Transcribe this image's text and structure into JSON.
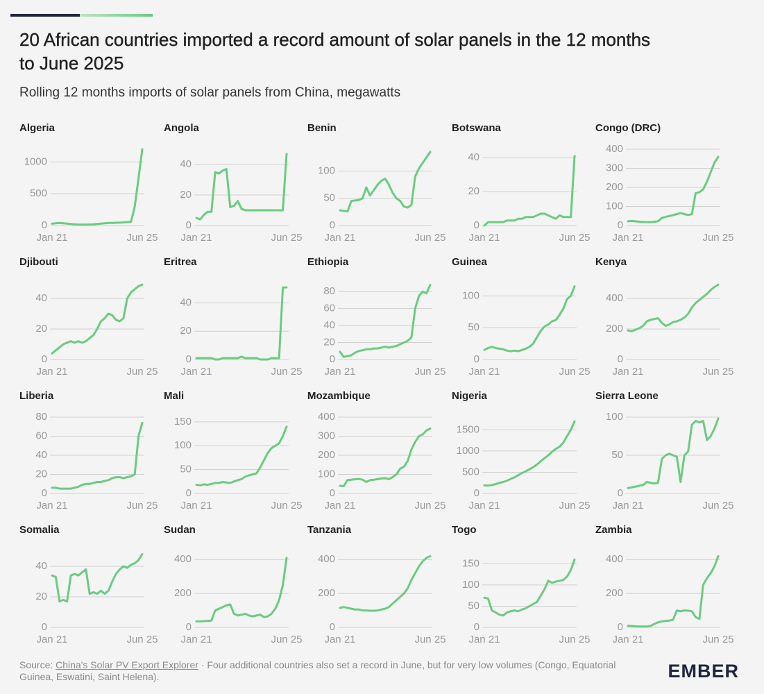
{
  "title_lines": [
    "20 African countries imported a record amount of solar panels in the 12 months",
    "to June 2025"
  ],
  "subtitle": "Rolling 12 months imports of solar panels from China, megawatts",
  "source": {
    "label": "Source:",
    "link": "China's Solar PV Export Explorer",
    "note": "· Four additional countries also set a record in June, but for very low volumes (Congo, Equatorial Guinea, Eswatini, Saint Helena)."
  },
  "logo": "EMBER",
  "chart_data": [
    {
      "type": "line",
      "title": "Algeria",
      "color": "#6acc7f",
      "ylim": [
        0,
        1200
      ],
      "yticks": [
        0,
        500,
        1000
      ],
      "categories": [
        "Jan 21",
        null,
        null,
        null,
        null,
        null,
        null,
        null,
        null,
        null,
        null,
        null,
        null,
        null,
        null,
        null,
        null,
        null,
        null,
        null,
        null,
        null,
        null,
        null,
        "Jun 25"
      ],
      "values": [
        30,
        35,
        40,
        35,
        30,
        25,
        20,
        15,
        15,
        15,
        18,
        20,
        25,
        30,
        35,
        40,
        40,
        45,
        45,
        50,
        55,
        60,
        300,
        740,
        1200
      ]
    },
    {
      "type": "line",
      "title": "Angola",
      "color": "#6acc7f",
      "ylim": [
        0,
        50
      ],
      "yticks": [
        0,
        20,
        40
      ],
      "categories": [
        "Jan 21",
        null,
        null,
        null,
        null,
        null,
        null,
        null,
        null,
        null,
        null,
        null,
        null,
        null,
        null,
        null,
        null,
        null,
        null,
        null,
        null,
        null,
        null,
        null,
        "Jun 25"
      ],
      "values": [
        5,
        4,
        7,
        9,
        9,
        35,
        34,
        36,
        37,
        12,
        13,
        16,
        11,
        10,
        10,
        10,
        10,
        10,
        10,
        10,
        10,
        10,
        10,
        10,
        47
      ]
    },
    {
      "type": "line",
      "title": "Benin",
      "color": "#6acc7f",
      "ylim": [
        0,
        140
      ],
      "yticks": [
        0,
        50,
        100
      ],
      "categories": [
        "Jan 21",
        null,
        null,
        null,
        null,
        null,
        null,
        null,
        null,
        null,
        null,
        null,
        null,
        null,
        null,
        null,
        null,
        null,
        null,
        null,
        null,
        null,
        null,
        null,
        "Jun 25"
      ],
      "values": [
        28,
        27,
        26,
        45,
        46,
        47,
        50,
        70,
        55,
        65,
        75,
        82,
        86,
        75,
        60,
        50,
        45,
        35,
        33,
        38,
        90,
        105,
        115,
        125,
        135
      ]
    },
    {
      "type": "line",
      "title": "Botswana",
      "color": "#6acc7f",
      "ylim": [
        0,
        45
      ],
      "yticks": [
        0,
        20,
        40
      ],
      "categories": [
        "Jan 21",
        null,
        null,
        null,
        null,
        null,
        null,
        null,
        null,
        null,
        null,
        null,
        null,
        null,
        null,
        null,
        null,
        null,
        null,
        null,
        null,
        null,
        null,
        null,
        "Jun 25"
      ],
      "values": [
        0,
        2,
        2,
        2,
        2,
        2,
        3,
        3,
        3,
        4,
        4,
        5,
        5,
        5,
        6,
        7,
        7,
        6,
        5,
        4,
        6,
        5,
        5,
        5,
        41
      ]
    },
    {
      "type": "line",
      "title": "Congo (DRC)",
      "color": "#6acc7f",
      "ylim": [
        0,
        400
      ],
      "yticks": [
        0,
        100,
        200,
        300,
        400
      ],
      "categories": [
        "Jan 21",
        null,
        null,
        null,
        null,
        null,
        null,
        null,
        null,
        null,
        null,
        null,
        null,
        null,
        null,
        null,
        null,
        null,
        null,
        null,
        null,
        null,
        null,
        null,
        "Jun 25"
      ],
      "values": [
        22,
        24,
        22,
        20,
        19,
        18,
        18,
        20,
        22,
        40,
        45,
        50,
        55,
        60,
        65,
        60,
        55,
        60,
        170,
        175,
        190,
        230,
        280,
        330,
        360
      ]
    },
    {
      "type": "line",
      "title": "Djibouti",
      "color": "#6acc7f",
      "ylim": [
        0,
        50
      ],
      "yticks": [
        0,
        20,
        40
      ],
      "categories": [
        "Jan 21",
        null,
        null,
        null,
        null,
        null,
        null,
        null,
        null,
        null,
        null,
        null,
        null,
        null,
        null,
        null,
        null,
        null,
        null,
        null,
        null,
        null,
        null,
        null,
        "Jun 25"
      ],
      "values": [
        4,
        6,
        8,
        10,
        11,
        12,
        11,
        12,
        11,
        12,
        14,
        16,
        20,
        25,
        27,
        30,
        29,
        26,
        25,
        27,
        40,
        44,
        46,
        48,
        49
      ]
    },
    {
      "type": "line",
      "title": "Eritrea",
      "color": "#6acc7f",
      "ylim": [
        0,
        54
      ],
      "yticks": [
        0,
        20,
        40
      ],
      "categories": [
        "Jan 21",
        null,
        null,
        null,
        null,
        null,
        null,
        null,
        null,
        null,
        null,
        null,
        null,
        null,
        null,
        null,
        null,
        null,
        null,
        null,
        null,
        null,
        null,
        null,
        "Jun 25"
      ],
      "values": [
        1,
        1,
        1,
        1,
        1,
        0,
        0,
        1,
        1,
        1,
        1,
        1,
        2,
        1,
        1,
        1,
        1,
        0,
        0,
        0,
        1,
        1,
        1,
        51,
        51
      ]
    },
    {
      "type": "line",
      "title": "Ethiopia",
      "color": "#6acc7f",
      "ylim": [
        0,
        90
      ],
      "yticks": [
        0,
        20,
        40,
        60,
        80
      ],
      "categories": [
        "Jan 21",
        null,
        null,
        null,
        null,
        null,
        null,
        null,
        null,
        null,
        null,
        null,
        null,
        null,
        null,
        null,
        null,
        null,
        null,
        null,
        null,
        null,
        null,
        null,
        "Jun 25"
      ],
      "values": [
        9,
        3,
        4,
        5,
        8,
        10,
        11,
        12,
        12,
        13,
        13,
        14,
        15,
        14,
        15,
        16,
        18,
        20,
        22,
        26,
        60,
        75,
        80,
        78,
        88
      ]
    },
    {
      "type": "line",
      "title": "Guinea",
      "color": "#6acc7f",
      "ylim": [
        0,
        120
      ],
      "yticks": [
        0,
        50,
        100
      ],
      "categories": [
        "Jan 21",
        null,
        null,
        null,
        null,
        null,
        null,
        null,
        null,
        null,
        null,
        null,
        null,
        null,
        null,
        null,
        null,
        null,
        null,
        null,
        null,
        null,
        null,
        null,
        "Jun 25"
      ],
      "values": [
        15,
        18,
        20,
        18,
        17,
        16,
        14,
        13,
        14,
        13,
        15,
        17,
        20,
        25,
        35,
        45,
        52,
        55,
        60,
        62,
        70,
        80,
        95,
        100,
        115
      ]
    },
    {
      "type": "line",
      "title": "Kenya",
      "color": "#6acc7f",
      "ylim": [
        0,
        500
      ],
      "yticks": [
        0,
        200,
        400
      ],
      "categories": [
        "Jan 21",
        null,
        null,
        null,
        null,
        null,
        null,
        null,
        null,
        null,
        null,
        null,
        null,
        null,
        null,
        null,
        null,
        null,
        null,
        null,
        null,
        null,
        null,
        null,
        "Jun 25"
      ],
      "values": [
        190,
        185,
        195,
        205,
        220,
        250,
        260,
        265,
        270,
        240,
        220,
        230,
        245,
        250,
        260,
        275,
        300,
        340,
        370,
        390,
        410,
        430,
        455,
        475,
        490
      ]
    },
    {
      "type": "line",
      "title": "Liberia",
      "color": "#6acc7f",
      "ylim": [
        0,
        80
      ],
      "yticks": [
        0,
        20,
        40,
        60,
        80
      ],
      "categories": [
        "Jan 21",
        null,
        null,
        null,
        null,
        null,
        null,
        null,
        null,
        null,
        null,
        null,
        null,
        null,
        null,
        null,
        null,
        null,
        null,
        null,
        null,
        null,
        null,
        null,
        "Jun 25"
      ],
      "values": [
        6,
        6,
        5,
        5,
        5,
        5,
        6,
        7,
        9,
        10,
        10,
        11,
        12,
        12,
        13,
        14,
        16,
        17,
        17,
        16,
        17,
        18,
        20,
        60,
        74
      ]
    },
    {
      "type": "line",
      "title": "Mali",
      "color": "#6acc7f",
      "ylim": [
        0,
        160
      ],
      "yticks": [
        0,
        50,
        100,
        150
      ],
      "categories": [
        "Jan 21",
        null,
        null,
        null,
        null,
        null,
        null,
        null,
        null,
        null,
        null,
        null,
        null,
        null,
        null,
        null,
        null,
        null,
        null,
        null,
        null,
        null,
        null,
        null,
        "Jun 25"
      ],
      "values": [
        18,
        17,
        19,
        18,
        20,
        22,
        22,
        24,
        23,
        22,
        25,
        28,
        30,
        35,
        38,
        40,
        42,
        55,
        70,
        85,
        95,
        100,
        105,
        120,
        140
      ]
    },
    {
      "type": "line",
      "title": "Mozambique",
      "color": "#6acc7f",
      "ylim": [
        0,
        400
      ],
      "yticks": [
        0,
        100,
        200,
        300,
        400
      ],
      "categories": [
        "Jan 21",
        null,
        null,
        null,
        null,
        null,
        null,
        null,
        null,
        null,
        null,
        null,
        null,
        null,
        null,
        null,
        null,
        null,
        null,
        null,
        null,
        null,
        null,
        null,
        "Jun 25"
      ],
      "values": [
        40,
        38,
        70,
        72,
        74,
        76,
        72,
        60,
        70,
        72,
        75,
        78,
        80,
        75,
        85,
        100,
        130,
        140,
        170,
        230,
        270,
        300,
        310,
        330,
        340
      ]
    },
    {
      "type": "line",
      "title": "Nigeria",
      "color": "#6acc7f",
      "ylim": [
        0,
        1800
      ],
      "yticks": [
        0,
        500,
        1000,
        1500
      ],
      "categories": [
        "Jan 21",
        null,
        null,
        null,
        null,
        null,
        null,
        null,
        null,
        null,
        null,
        null,
        null,
        null,
        null,
        null,
        null,
        null,
        null,
        null,
        null,
        null,
        null,
        null,
        "Jun 25"
      ],
      "values": [
        190,
        185,
        200,
        220,
        250,
        270,
        300,
        340,
        380,
        430,
        480,
        520,
        570,
        620,
        680,
        760,
        830,
        900,
        980,
        1050,
        1100,
        1200,
        1350,
        1500,
        1700
      ]
    },
    {
      "type": "line",
      "title": "Sierra Leone",
      "color": "#6acc7f",
      "ylim": [
        0,
        100
      ],
      "yticks": [
        0,
        50,
        100
      ],
      "categories": [
        "Jan 21",
        null,
        null,
        null,
        null,
        null,
        null,
        null,
        null,
        null,
        null,
        null,
        null,
        null,
        null,
        null,
        null,
        null,
        null,
        null,
        null,
        null,
        null,
        null,
        "Jun 25"
      ],
      "values": [
        7,
        8,
        9,
        10,
        11,
        15,
        14,
        13,
        14,
        45,
        50,
        52,
        50,
        48,
        15,
        50,
        55,
        90,
        95,
        93,
        95,
        70,
        75,
        85,
        98
      ]
    },
    {
      "type": "line",
      "title": "Somalia",
      "color": "#6acc7f",
      "ylim": [
        0,
        50
      ],
      "yticks": [
        0,
        20,
        40
      ],
      "categories": [
        "Jan 21",
        null,
        null,
        null,
        null,
        null,
        null,
        null,
        null,
        null,
        null,
        null,
        null,
        null,
        null,
        null,
        null,
        null,
        null,
        null,
        null,
        null,
        null,
        null,
        "Jun 25"
      ],
      "values": [
        34,
        33,
        17,
        18,
        17,
        34,
        35,
        34,
        36,
        38,
        22,
        23,
        22,
        24,
        22,
        24,
        30,
        35,
        38,
        40,
        39,
        41,
        42,
        44,
        48
      ]
    },
    {
      "type": "line",
      "title": "Sudan",
      "color": "#6acc7f",
      "ylim": [
        0,
        450
      ],
      "yticks": [
        0,
        200,
        400
      ],
      "categories": [
        "Jan 21",
        null,
        null,
        null,
        null,
        null,
        null,
        null,
        null,
        null,
        null,
        null,
        null,
        null,
        null,
        null,
        null,
        null,
        null,
        null,
        null,
        null,
        null,
        null,
        "Jun 25"
      ],
      "values": [
        35,
        35,
        37,
        38,
        40,
        100,
        110,
        120,
        130,
        135,
        80,
        70,
        75,
        80,
        70,
        65,
        70,
        75,
        60,
        65,
        80,
        110,
        160,
        250,
        410
      ]
    },
    {
      "type": "line",
      "title": "Tanzania",
      "color": "#6acc7f",
      "ylim": [
        0,
        450
      ],
      "yticks": [
        0,
        200,
        400
      ],
      "categories": [
        "Jan 21",
        null,
        null,
        null,
        null,
        null,
        null,
        null,
        null,
        null,
        null,
        null,
        null,
        null,
        null,
        null,
        null,
        null,
        null,
        null,
        null,
        null,
        null,
        null,
        "Jun 25"
      ],
      "values": [
        115,
        120,
        115,
        110,
        105,
        105,
        100,
        100,
        98,
        98,
        100,
        105,
        110,
        120,
        140,
        160,
        180,
        200,
        230,
        280,
        320,
        360,
        390,
        410,
        420
      ]
    },
    {
      "type": "line",
      "title": "Togo",
      "color": "#6acc7f",
      "ylim": [
        0,
        180
      ],
      "yticks": [
        0,
        50,
        100,
        150
      ],
      "categories": [
        "Jan 21",
        null,
        null,
        null,
        null,
        null,
        null,
        null,
        null,
        null,
        null,
        null,
        null,
        null,
        null,
        null,
        null,
        null,
        null,
        null,
        null,
        null,
        null,
        null,
        "Jun 25"
      ],
      "values": [
        70,
        68,
        40,
        35,
        30,
        28,
        35,
        38,
        40,
        38,
        42,
        45,
        50,
        55,
        60,
        75,
        90,
        110,
        105,
        108,
        110,
        112,
        120,
        135,
        160
      ]
    },
    {
      "type": "line",
      "title": "Zambia",
      "color": "#6acc7f",
      "ylim": [
        0,
        450
      ],
      "yticks": [
        0,
        200,
        400
      ],
      "categories": [
        "Jan 21",
        null,
        null,
        null,
        null,
        null,
        null,
        null,
        null,
        null,
        null,
        null,
        null,
        null,
        null,
        null,
        null,
        null,
        null,
        null,
        null,
        null,
        null,
        null,
        "Jun 25"
      ],
      "values": [
        10,
        8,
        6,
        5,
        5,
        5,
        8,
        20,
        30,
        35,
        38,
        40,
        45,
        100,
        95,
        100,
        98,
        95,
        60,
        50,
        250,
        290,
        320,
        360,
        420
      ]
    }
  ]
}
